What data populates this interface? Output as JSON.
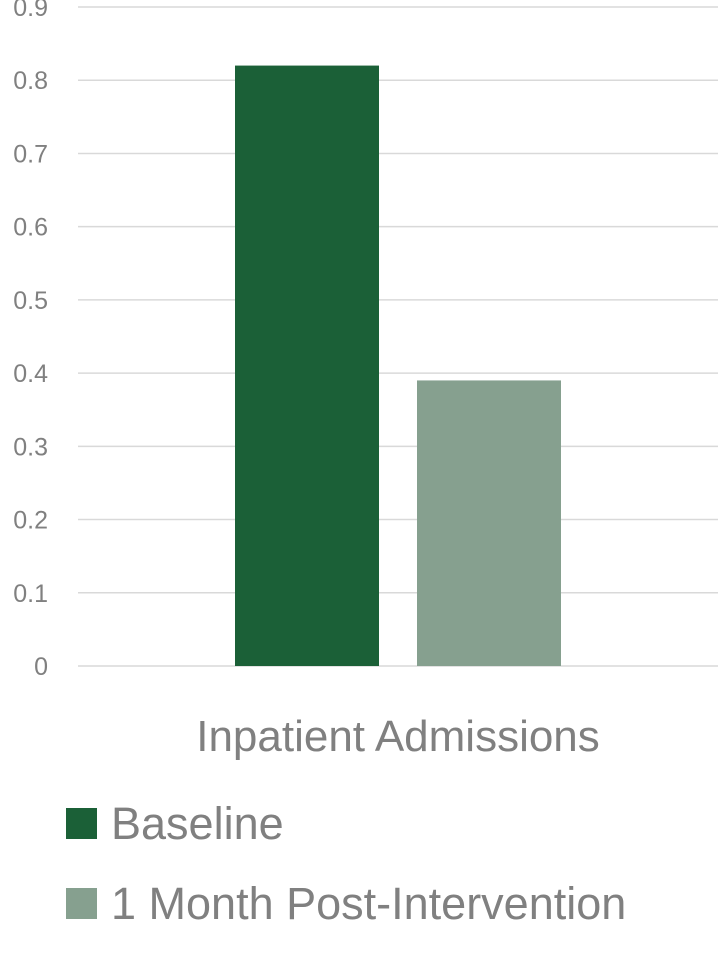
{
  "chart_data": {
    "type": "bar",
    "title": "",
    "xlabel": "",
    "ylabel": "",
    "categories": [
      "Inpatient Admissions"
    ],
    "series": [
      {
        "name": "Baseline",
        "values": [
          0.82
        ],
        "color": "#1b6037"
      },
      {
        "name": "1 Month Post-Intervention",
        "values": [
          0.39
        ],
        "color": "#86a08f"
      }
    ],
    "ylim": [
      0,
      0.9
    ],
    "yticks": [
      "0",
      "0.1",
      "0.2",
      "0.3",
      "0.4",
      "0.5",
      "0.6",
      "0.7",
      "0.8",
      "0.9"
    ],
    "grid": true,
    "legend_position": "bottom",
    "colors": {
      "grid": "#d9d9d9",
      "text": "#808080"
    }
  }
}
